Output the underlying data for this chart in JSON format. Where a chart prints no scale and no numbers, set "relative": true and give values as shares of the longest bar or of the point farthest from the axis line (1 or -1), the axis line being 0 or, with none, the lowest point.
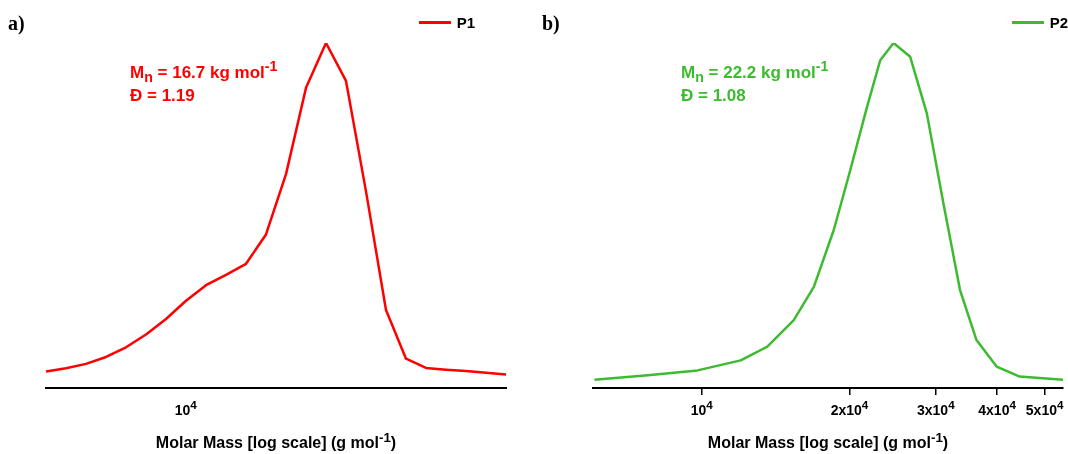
{
  "chart_data": [
    {
      "type": "line",
      "title": "a)",
      "xlabel": "Molar Mass [log scale] (g mol$^{-1}$)",
      "relative": true,
      "legend": "top right",
      "annotations": [
        "M$_{n}$ = 16.7 kg mol$^{-1}$",
        "Đ = 1.19",
        "10$^{4}$"
      ],
      "categories": [
        null,
        null,
        null,
        null,
        null,
        null,
        null,
        null,
        null,
        null,
        null,
        null,
        null,
        null,
        null,
        null,
        null,
        null,
        null,
        null,
        null,
        null,
        null,
        null
      ],
      "series": [
        {
          "name": "P1",
          "color": "#ff0000",
          "values": [
            0.048,
            0.057,
            0.07,
            0.09,
            0.118,
            0.155,
            0.2,
            0.253,
            0.298,
            0.328,
            0.36,
            0.445,
            0.62,
            0.87,
            1.0,
            0.89,
            0.57,
            0.226,
            0.085,
            0.058,
            0.053,
            0.049,
            0.044,
            0.039
          ]
        }
      ]
    },
    {
      "type": "line",
      "title": "b)",
      "xlabel": "Molar Mass [log scale] (g mol$^{-1}$)",
      "relative": true,
      "log": "x",
      "legend": "top right",
      "annotations": [
        "M$_{n}$ = 22.2 kg mol$^{-1}$",
        "Đ = 1.08"
      ],
      "xlim": [
        6000,
        54500
      ],
      "xticks": [
        {
          "value": 10000,
          "label": "10$^{4}$"
        },
        {
          "value": 20000,
          "label": "2x10$^{4}$"
        },
        {
          "value": 30000,
          "label": "3x10$^{4}$"
        },
        {
          "value": 40000,
          "label": "4x10$^{4}$"
        },
        {
          "value": 50000,
          "label": "5x10$^{4}$"
        }
      ],
      "series": [
        {
          "name": "P2",
          "color": "#3dbb30",
          "x": [
            6040,
            7760,
            9800,
            12000,
            13600,
            15400,
            16920,
            18580,
            20080,
            21720,
            23110,
            24600,
            26600,
            28760,
            31090,
            33610,
            36310,
            39900,
            44460,
            54500
          ],
          "values": [
            0.024,
            0.037,
            0.051,
            0.08,
            0.12,
            0.197,
            0.293,
            0.458,
            0.632,
            0.815,
            0.95,
            1.0,
            0.96,
            0.796,
            0.535,
            0.284,
            0.139,
            0.062,
            0.033,
            0.024
          ]
        }
      ]
    }
  ]
}
